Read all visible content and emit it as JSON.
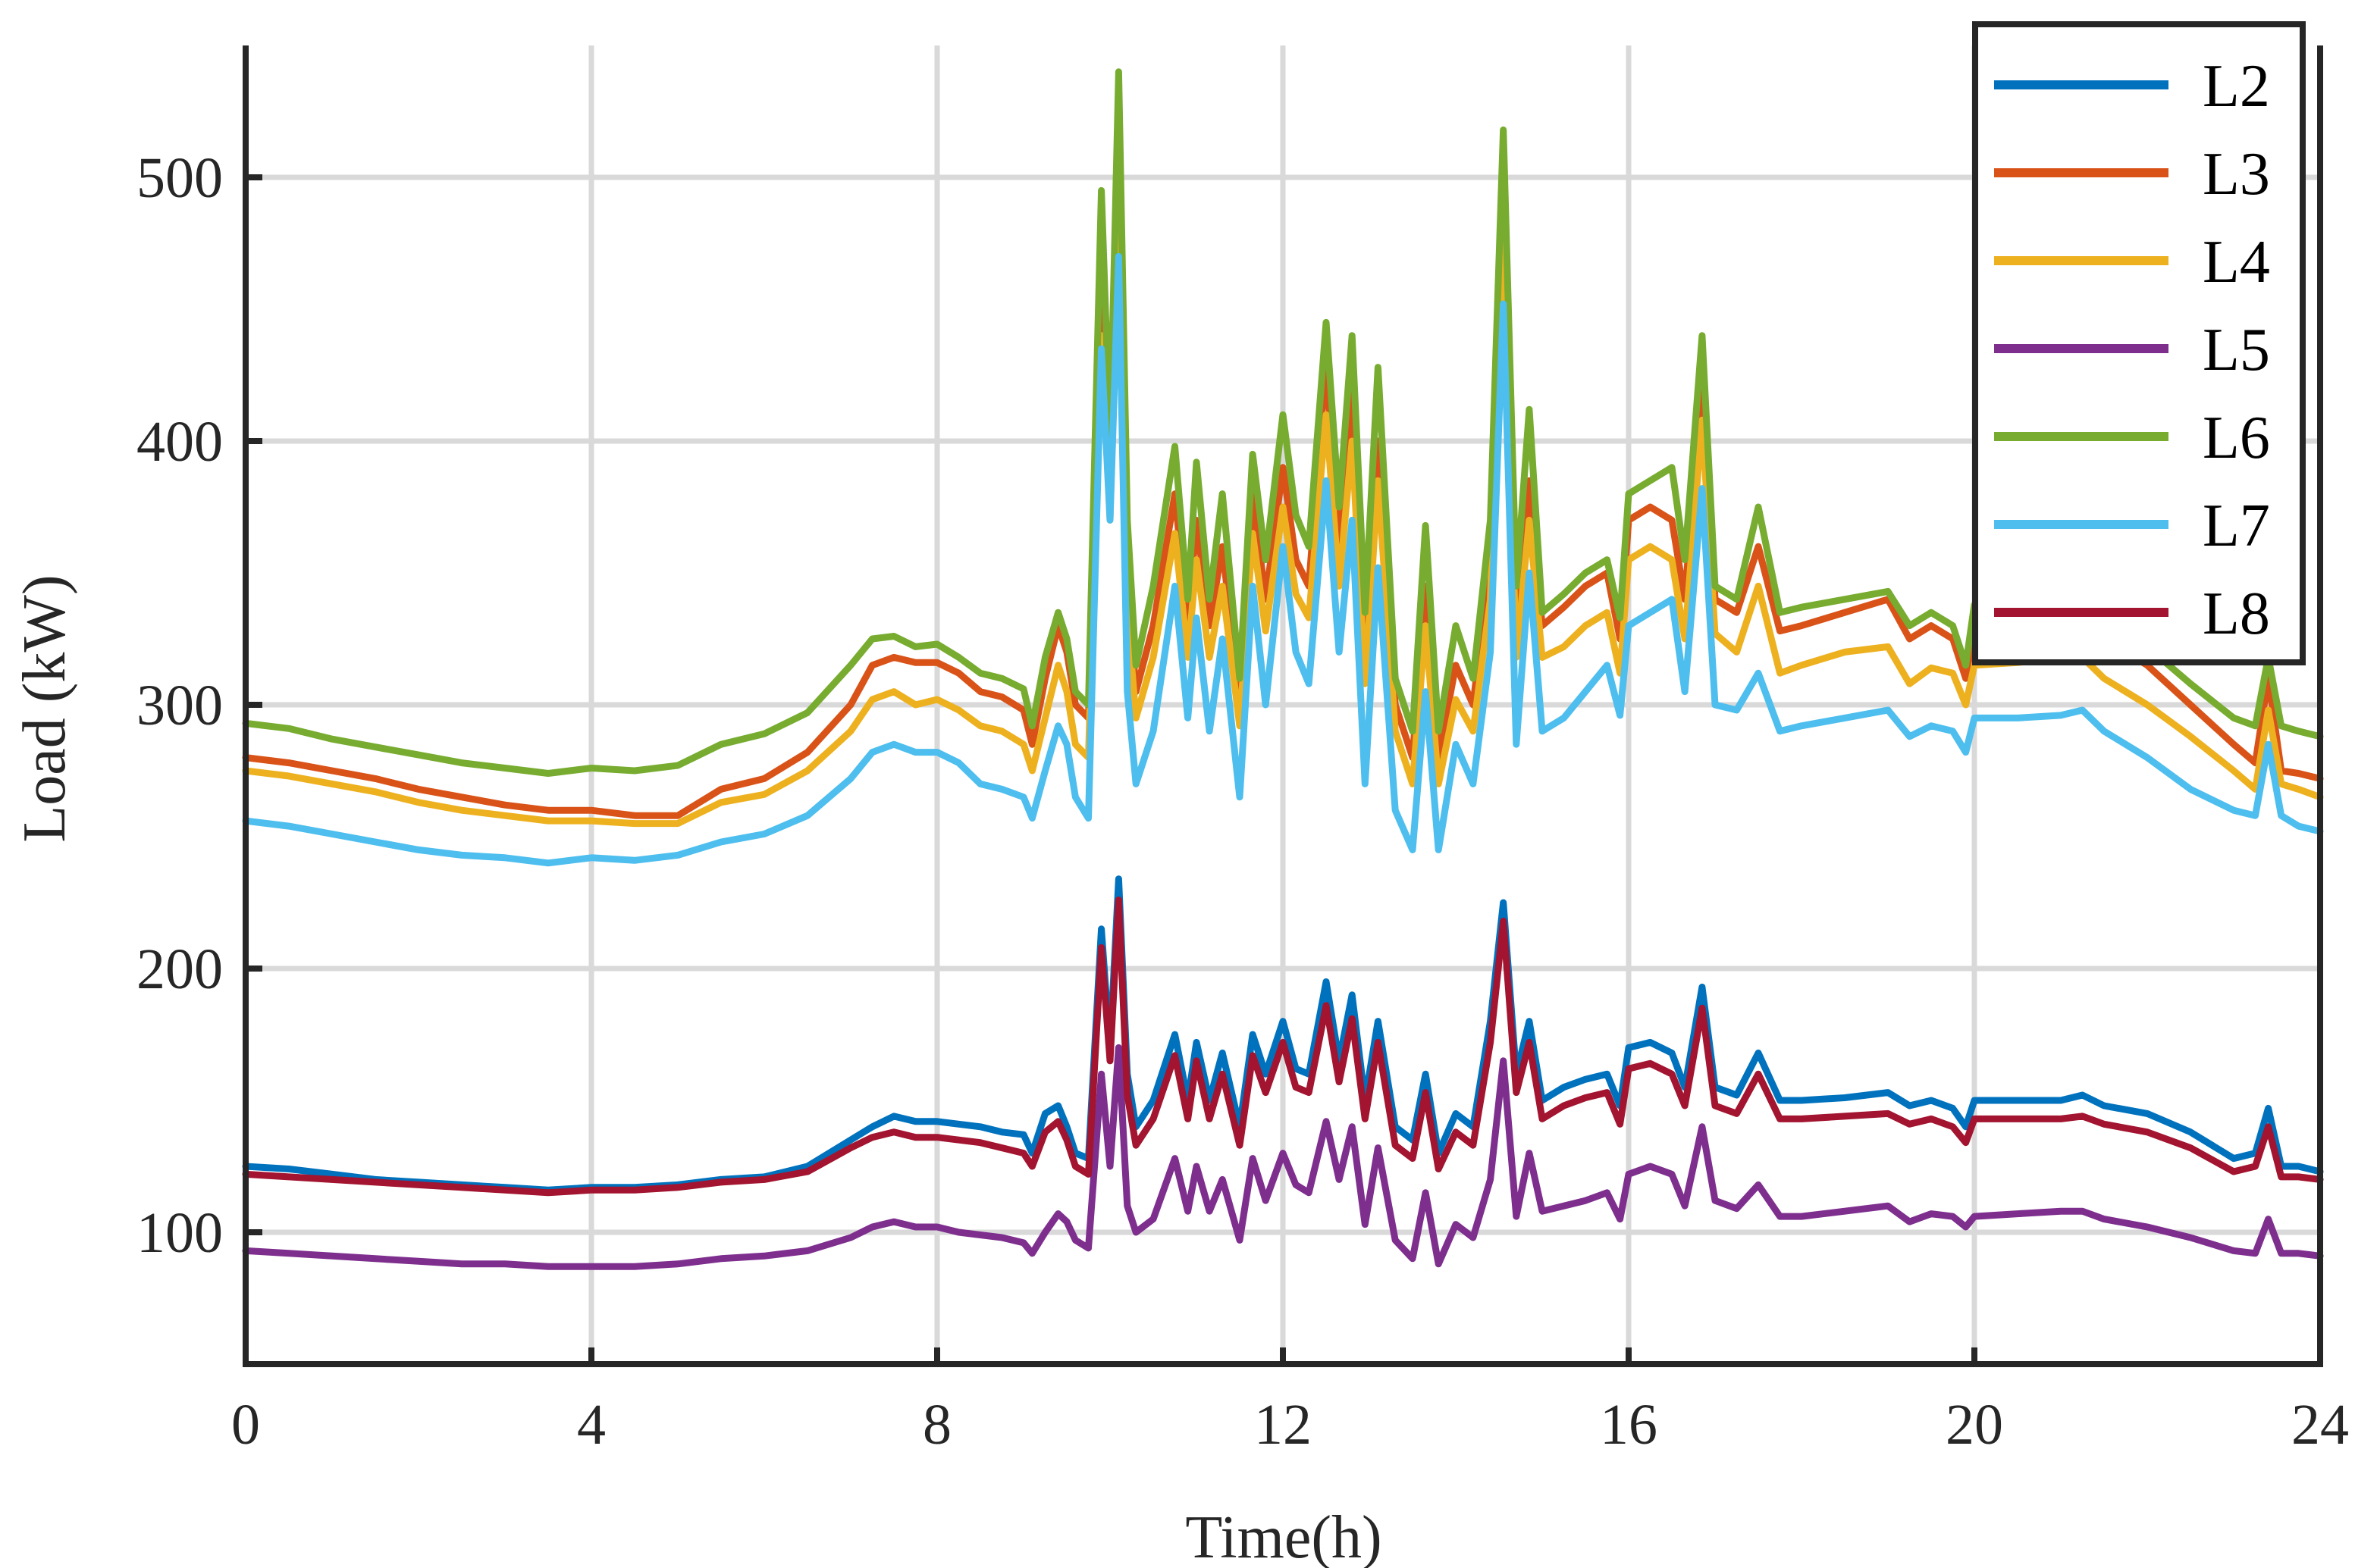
{
  "chart_data": {
    "type": "line",
    "title": "",
    "xlabel": "Time(h)",
    "ylabel": "Load (kW)",
    "xlim": [
      0,
      24
    ],
    "ylim": [
      50,
      550
    ],
    "xticks": [
      0,
      4,
      8,
      12,
      16,
      20,
      24
    ],
    "yticks": [
      100,
      200,
      300,
      400,
      500
    ],
    "grid": true,
    "legend_position": "top-right",
    "x": [
      0,
      0.5,
      1,
      1.5,
      2,
      2.5,
      3,
      3.5,
      4,
      4.5,
      5,
      5.5,
      6,
      6.5,
      7,
      7.25,
      7.5,
      7.75,
      8,
      8.25,
      8.5,
      8.75,
      9,
      9.1,
      9.25,
      9.4,
      9.5,
      9.6,
      9.75,
      9.9,
      10,
      10.1,
      10.2,
      10.3,
      10.5,
      10.75,
      10.9,
      11,
      11.15,
      11.3,
      11.5,
      11.65,
      11.8,
      12,
      12.15,
      12.3,
      12.5,
      12.65,
      12.8,
      12.95,
      13.1,
      13.3,
      13.5,
      13.65,
      13.8,
      14,
      14.2,
      14.4,
      14.55,
      14.7,
      14.85,
      15,
      15.25,
      15.5,
      15.75,
      15.9,
      16,
      16.25,
      16.5,
      16.65,
      16.85,
      17,
      17.25,
      17.5,
      17.75,
      18,
      18.5,
      19,
      19.25,
      19.5,
      19.75,
      19.9,
      20,
      20.5,
      21,
      21.25,
      21.5,
      22,
      22.5,
      23,
      23.25,
      23.4,
      23.55,
      23.75,
      24
    ],
    "series": [
      {
        "name": "L2",
        "color": "#0072BD",
        "values": [
          125,
          124,
          122,
          120,
          119,
          118,
          117,
          116,
          117,
          117,
          118,
          120,
          121,
          125,
          135,
          140,
          144,
          142,
          142,
          141,
          140,
          138,
          137,
          130,
          145,
          148,
          140,
          130,
          128,
          215,
          170,
          234,
          160,
          140,
          150,
          175,
          150,
          172,
          150,
          168,
          140,
          175,
          160,
          180,
          162,
          160,
          195,
          165,
          190,
          150,
          180,
          140,
          135,
          160,
          130,
          145,
          140,
          180,
          225,
          160,
          180,
          150,
          155,
          158,
          160,
          148,
          170,
          172,
          168,
          155,
          193,
          155,
          152,
          168,
          150,
          150,
          151,
          153,
          148,
          150,
          147,
          140,
          150,
          150,
          150,
          152,
          148,
          145,
          138,
          128,
          130,
          147,
          125,
          125,
          123
        ]
      },
      {
        "name": "L3",
        "color": "#D95319",
        "values": [
          280,
          278,
          275,
          272,
          268,
          265,
          262,
          260,
          260,
          258,
          258,
          268,
          272,
          282,
          300,
          315,
          318,
          316,
          316,
          312,
          305,
          303,
          298,
          285,
          310,
          330,
          320,
          300,
          295,
          450,
          380,
          520,
          350,
          305,
          330,
          380,
          330,
          370,
          330,
          360,
          300,
          380,
          340,
          390,
          355,
          345,
          430,
          360,
          420,
          320,
          400,
          300,
          280,
          345,
          280,
          315,
          300,
          355,
          505,
          330,
          385,
          330,
          337,
          345,
          350,
          325,
          370,
          375,
          370,
          340,
          425,
          340,
          335,
          360,
          328,
          330,
          335,
          340,
          325,
          330,
          325,
          310,
          330,
          330,
          330,
          332,
          325,
          315,
          300,
          285,
          278,
          310,
          275,
          274,
          272
        ]
      },
      {
        "name": "L4",
        "color": "#EDB120",
        "values": [
          275,
          273,
          270,
          267,
          263,
          260,
          258,
          256,
          256,
          255,
          255,
          263,
          266,
          275,
          290,
          302,
          305,
          300,
          302,
          298,
          292,
          290,
          285,
          275,
          295,
          315,
          305,
          285,
          280,
          440,
          370,
          500,
          335,
          295,
          318,
          365,
          318,
          355,
          318,
          345,
          292,
          365,
          328,
          375,
          342,
          333,
          410,
          345,
          400,
          308,
          385,
          290,
          270,
          330,
          270,
          302,
          290,
          340,
          480,
          318,
          370,
          318,
          322,
          330,
          335,
          312,
          355,
          360,
          355,
          325,
          408,
          327,
          320,
          345,
          312,
          315,
          320,
          322,
          308,
          314,
          312,
          300,
          315,
          316,
          318,
          318,
          310,
          300,
          288,
          275,
          268,
          298,
          270,
          268,
          265
        ]
      },
      {
        "name": "L5",
        "color": "#7E2F8E",
        "values": [
          93,
          92,
          91,
          90,
          89,
          88,
          88,
          87,
          87,
          87,
          88,
          90,
          91,
          93,
          98,
          102,
          104,
          102,
          102,
          100,
          99,
          98,
          96,
          92,
          100,
          107,
          104,
          97,
          94,
          160,
          125,
          170,
          110,
          100,
          105,
          128,
          108,
          125,
          108,
          120,
          97,
          128,
          112,
          130,
          118,
          115,
          142,
          120,
          140,
          103,
          132,
          97,
          90,
          115,
          88,
          103,
          98,
          120,
          165,
          106,
          130,
          108,
          110,
          112,
          115,
          105,
          122,
          125,
          122,
          110,
          140,
          112,
          109,
          118,
          106,
          106,
          108,
          110,
          104,
          107,
          106,
          102,
          106,
          107,
          108,
          108,
          105,
          102,
          98,
          93,
          92,
          105,
          92,
          92,
          91
        ]
      },
      {
        "name": "L6",
        "color": "#77AC30",
        "values": [
          293,
          291,
          287,
          284,
          281,
          278,
          276,
          274,
          276,
          275,
          277,
          285,
          289,
          297,
          315,
          325,
          326,
          322,
          323,
          318,
          312,
          310,
          306,
          292,
          318,
          335,
          325,
          305,
          300,
          495,
          400,
          540,
          370,
          315,
          345,
          398,
          340,
          392,
          340,
          380,
          310,
          395,
          355,
          410,
          372,
          360,
          445,
          375,
          440,
          335,
          428,
          310,
          290,
          368,
          290,
          330,
          310,
          370,
          518,
          345,
          412,
          335,
          342,
          350,
          355,
          333,
          380,
          385,
          390,
          355,
          440,
          345,
          340,
          375,
          335,
          337,
          340,
          343,
          330,
          335,
          330,
          315,
          338,
          338,
          336,
          340,
          330,
          322,
          308,
          295,
          292,
          318,
          292,
          290,
          288
        ]
      },
      {
        "name": "L7",
        "color": "#4DBEEE",
        "values": [
          256,
          254,
          251,
          248,
          245,
          243,
          242,
          240,
          242,
          241,
          243,
          248,
          251,
          258,
          272,
          282,
          285,
          282,
          282,
          278,
          270,
          268,
          265,
          257,
          275,
          292,
          285,
          265,
          257,
          435,
          370,
          470,
          305,
          270,
          290,
          345,
          295,
          333,
          290,
          325,
          265,
          345,
          300,
          360,
          320,
          308,
          385,
          320,
          370,
          270,
          352,
          260,
          245,
          305,
          245,
          285,
          270,
          320,
          452,
          285,
          350,
          290,
          295,
          305,
          315,
          296,
          330,
          335,
          340,
          305,
          382,
          300,
          298,
          312,
          290,
          292,
          295,
          298,
          288,
          292,
          290,
          282,
          295,
          295,
          296,
          298,
          290,
          280,
          268,
          260,
          258,
          285,
          258,
          254,
          252
        ]
      },
      {
        "name": "L8",
        "color": "#A2142F",
        "values": [
          122,
          121,
          120,
          119,
          118,
          117,
          116,
          115,
          116,
          116,
          117,
          119,
          120,
          123,
          132,
          136,
          138,
          136,
          136,
          135,
          134,
          132,
          130,
          125,
          138,
          142,
          135,
          125,
          122,
          208,
          165,
          226,
          152,
          133,
          143,
          167,
          143,
          165,
          143,
          160,
          133,
          167,
          153,
          172,
          155,
          153,
          186,
          157,
          181,
          143,
          172,
          133,
          128,
          153,
          124,
          138,
          133,
          172,
          218,
          153,
          172,
          143,
          148,
          151,
          153,
          141,
          162,
          164,
          160,
          148,
          185,
          148,
          145,
          160,
          143,
          143,
          144,
          145,
          141,
          143,
          140,
          134,
          143,
          143,
          143,
          144,
          141,
          138,
          132,
          123,
          125,
          140,
          121,
          121,
          120
        ]
      }
    ]
  }
}
